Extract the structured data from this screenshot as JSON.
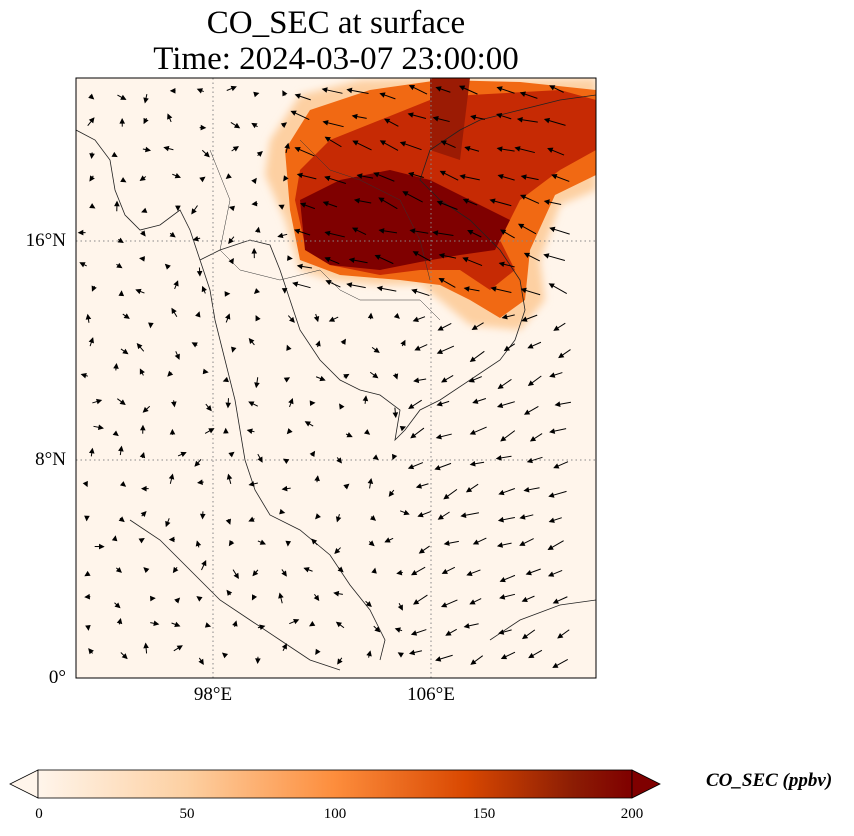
{
  "title": {
    "line1": "CO_SEC at surface",
    "line2": "Time: 2024-03-07 23:00:00"
  },
  "axes": {
    "lat_ticks": [
      "16°N",
      "8°N",
      "0°"
    ],
    "lon_ticks": [
      "98°E",
      "106°E"
    ]
  },
  "colorbar": {
    "label": "CO_SEC (ppbv)",
    "ticks": [
      "0",
      "50",
      "100",
      "150",
      "200"
    ],
    "range": [
      0,
      200
    ],
    "extend": "both",
    "colormap": [
      "#fff5eb",
      "#fdd0a2",
      "#fd8d3c",
      "#d94801",
      "#8c1d04",
      "#7f0000"
    ]
  },
  "map": {
    "lon_range": [
      93,
      112
    ],
    "lat_range": [
      0,
      22
    ],
    "gridlines": "dotted",
    "quiver": "wind vectors"
  }
}
